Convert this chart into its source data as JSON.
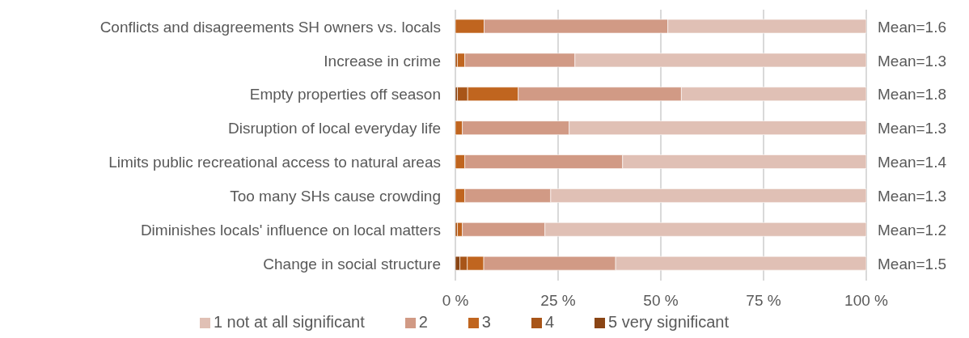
{
  "chart_data": {
    "type": "bar",
    "orientation": "horizontal",
    "stacked": true,
    "categories": [
      "Conflicts and disagreements SH owners vs. locals",
      "Increase in crime",
      "Empty properties off season",
      "Disruption of local everyday life",
      "Limits public recreational access to natural areas",
      "Too many SHs cause crowding",
      "Diminishes locals' influence on local matters",
      "Change in social structure"
    ],
    "series": [
      {
        "name": "5 very significant",
        "color": "#8a4515",
        "values": [
          0,
          0,
          0.5,
          0,
          0,
          0,
          0,
          1.1
        ]
      },
      {
        "name": "4",
        "color": "#a85518",
        "values": [
          0,
          0.5,
          2.5,
          0,
          0,
          0,
          0.5,
          1.8
        ]
      },
      {
        "name": "3",
        "color": "#c0651f",
        "values": [
          7,
          1.8,
          12.3,
          1.7,
          2.3,
          2.3,
          1.2,
          4
        ]
      },
      {
        "name": "2",
        "color": "#d19a85",
        "values": [
          44.7,
          26.8,
          39.7,
          26,
          38.4,
          20.9,
          20.1,
          32.1
        ]
      },
      {
        "name": "1 not at all significant",
        "color": "#e0c0b5",
        "values": [
          48.3,
          70.9,
          45,
          72.3,
          59.3,
          76.8,
          78.2,
          61
        ]
      }
    ],
    "xlim": [
      0,
      100
    ],
    "xticks": [
      {
        "value": 0,
        "label": "0 %"
      },
      {
        "value": 25,
        "label": "25 %"
      },
      {
        "value": 50,
        "label": "50 %"
      },
      {
        "value": 75,
        "label": "75 %"
      },
      {
        "value": 100,
        "label": "100 %"
      }
    ],
    "grid": "x",
    "legend": "bottom",
    "annotations": [
      "Mean=1.6",
      "Mean=1.3",
      "Mean=1.8",
      "Mean=1.3",
      "Mean=1.4",
      "Mean=1.3",
      "Mean=1.2",
      "Mean=1.5"
    ]
  }
}
